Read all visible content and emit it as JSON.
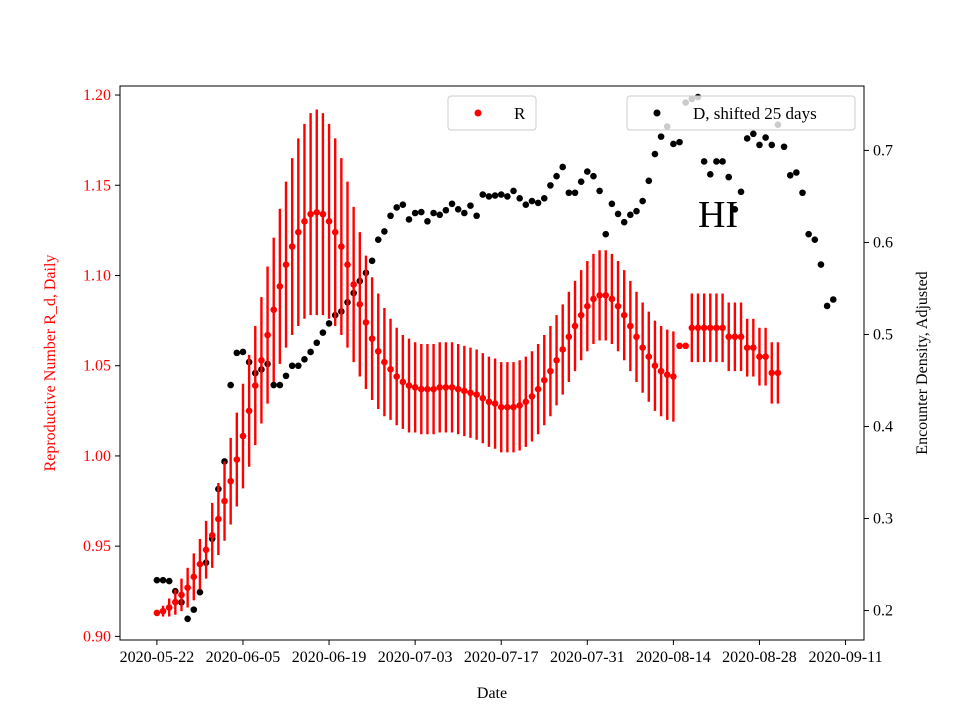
{
  "chart_data": {
    "type": "scatter",
    "annotation": "HI",
    "xlabel": "Date",
    "ylabel_left": "Reproductive Number R_d, Daily",
    "ylabel_right": "Encounter Density, Adjusted",
    "x_tick_labels": [
      "2020-05-22",
      "2020-06-05",
      "2020-06-19",
      "2020-07-03",
      "2020-07-17",
      "2020-07-31",
      "2020-08-14",
      "2020-08-28",
      "2020-09-11"
    ],
    "left_ticks": [
      "0.90",
      "0.95",
      "1.00",
      "1.05",
      "1.10",
      "1.15",
      "1.20"
    ],
    "right_ticks": [
      "0.2",
      "0.3",
      "0.4",
      "0.5",
      "0.6",
      "0.7"
    ],
    "ylim_left": [
      0.898,
      1.205
    ],
    "ylim_right": [
      0.168,
      0.77
    ],
    "xlim": [
      "2020-05-16",
      "2020-09-14"
    ],
    "legend_left": "R",
    "legend_right": "D, shifted 25 days",
    "colors": {
      "r_series": "#ff0000",
      "d_series": "#000000",
      "left_axis": "#ff0000"
    },
    "r_series": {
      "name": "R",
      "start_date": "2020-05-22",
      "values": [
        0.913,
        0.914,
        0.916,
        0.919,
        0.923,
        0.927,
        0.933,
        0.94,
        0.948,
        0.956,
        0.965,
        0.975,
        0.986,
        0.998,
        1.011,
        1.025,
        1.039,
        1.053,
        1.067,
        1.081,
        1.094,
        1.106,
        1.116,
        1.124,
        1.13,
        1.134,
        1.135,
        1.134,
        1.13,
        1.124,
        1.116,
        1.106,
        1.095,
        1.084,
        1.074,
        1.065,
        1.058,
        1.052,
        1.048,
        1.044,
        1.041,
        1.039,
        1.038,
        1.037,
        1.037,
        1.037,
        1.038,
        1.038,
        1.038,
        1.037,
        1.036,
        1.035,
        1.034,
        1.032,
        1.03,
        1.029,
        1.027,
        1.027,
        1.027,
        1.028,
        1.03,
        1.033,
        1.037,
        1.042,
        1.047,
        1.053,
        1.059,
        1.066,
        1.072,
        1.078,
        1.083,
        1.087,
        1.089,
        1.089,
        1.087,
        1.083,
        1.078,
        1.072,
        1.066,
        1.06,
        1.055,
        1.05,
        1.047,
        1.045,
        1.044,
        1.061,
        1.061,
        1.071,
        1.071,
        1.071,
        1.071,
        1.071,
        1.071,
        1.066,
        1.066,
        1.066,
        1.06,
        1.06,
        1.055,
        1.055,
        1.046,
        1.046
      ],
      "errors": [
        0.0,
        0.003,
        0.005,
        0.007,
        0.009,
        0.011,
        0.013,
        0.014,
        0.016,
        0.018,
        0.02,
        0.022,
        0.024,
        0.026,
        0.029,
        0.031,
        0.033,
        0.035,
        0.038,
        0.04,
        0.043,
        0.046,
        0.049,
        0.052,
        0.054,
        0.056,
        0.057,
        0.056,
        0.054,
        0.052,
        0.049,
        0.046,
        0.043,
        0.04,
        0.037,
        0.034,
        0.032,
        0.03,
        0.028,
        0.027,
        0.026,
        0.026,
        0.025,
        0.025,
        0.025,
        0.025,
        0.025,
        0.025,
        0.025,
        0.025,
        0.025,
        0.025,
        0.025,
        0.025,
        0.025,
        0.025,
        0.025,
        0.025,
        0.025,
        0.025,
        0.025,
        0.025,
        0.025,
        0.025,
        0.025,
        0.025,
        0.025,
        0.025,
        0.025,
        0.025,
        0.025,
        0.025,
        0.025,
        0.025,
        0.025,
        0.025,
        0.025,
        0.025,
        0.025,
        0.025,
        0.025,
        0.025,
        0.025,
        0.025,
        0.025,
        0.0,
        0.0,
        0.019,
        0.019,
        0.019,
        0.019,
        0.019,
        0.019,
        0.019,
        0.019,
        0.019,
        0.016,
        0.016,
        0.016,
        0.016,
        0.017,
        0.017
      ]
    },
    "d_series": {
      "name": "D, shifted 25 days",
      "points": [
        [
          "2020-05-22",
          0.233
        ],
        [
          "2020-05-23",
          0.233
        ],
        [
          "2020-05-24",
          0.232
        ],
        [
          "2020-05-25",
          0.221
        ],
        [
          "2020-05-26",
          0.209
        ],
        [
          "2020-05-27",
          0.191
        ],
        [
          "2020-05-28",
          0.201
        ],
        [
          "2020-05-29",
          0.22
        ],
        [
          "2020-05-30",
          0.252
        ],
        [
          "2020-05-31",
          0.278
        ],
        [
          "2020-06-01",
          0.332
        ],
        [
          "2020-06-02",
          0.362
        ],
        [
          "2020-06-03",
          0.445
        ],
        [
          "2020-06-04",
          0.48
        ],
        [
          "2020-06-05",
          0.481
        ],
        [
          "2020-06-06",
          0.47
        ],
        [
          "2020-06-07",
          0.458
        ],
        [
          "2020-06-08",
          0.462
        ],
        [
          "2020-06-09",
          0.468
        ],
        [
          "2020-06-10",
          0.445
        ],
        [
          "2020-06-11",
          0.445
        ],
        [
          "2020-06-12",
          0.455
        ],
        [
          "2020-06-13",
          0.466
        ],
        [
          "2020-06-14",
          0.466
        ],
        [
          "2020-06-15",
          0.473
        ],
        [
          "2020-06-16",
          0.481
        ],
        [
          "2020-06-17",
          0.491
        ],
        [
          "2020-06-18",
          0.502
        ],
        [
          "2020-06-19",
          0.512
        ],
        [
          "2020-06-20",
          0.521
        ],
        [
          "2020-06-21",
          0.525
        ],
        [
          "2020-06-22",
          0.535
        ],
        [
          "2020-06-23",
          0.545
        ],
        [
          "2020-06-24",
          0.558
        ],
        [
          "2020-06-25",
          0.567
        ],
        [
          "2020-06-26",
          0.58
        ],
        [
          "2020-06-27",
          0.603
        ],
        [
          "2020-06-28",
          0.612
        ],
        [
          "2020-06-29",
          0.629
        ],
        [
          "2020-06-30",
          0.638
        ],
        [
          "2020-07-01",
          0.641
        ],
        [
          "2020-07-02",
          0.625
        ],
        [
          "2020-07-03",
          0.632
        ],
        [
          "2020-07-04",
          0.633
        ],
        [
          "2020-07-05",
          0.623
        ],
        [
          "2020-07-06",
          0.632
        ],
        [
          "2020-07-07",
          0.63
        ],
        [
          "2020-07-08",
          0.635
        ],
        [
          "2020-07-09",
          0.642
        ],
        [
          "2020-07-10",
          0.636
        ],
        [
          "2020-07-11",
          0.632
        ],
        [
          "2020-07-12",
          0.64
        ],
        [
          "2020-07-13",
          0.629
        ],
        [
          "2020-07-14",
          0.652
        ],
        [
          "2020-07-15",
          0.65
        ],
        [
          "2020-07-16",
          0.651
        ],
        [
          "2020-07-17",
          0.652
        ],
        [
          "2020-07-18",
          0.65
        ],
        [
          "2020-07-19",
          0.656
        ],
        [
          "2020-07-20",
          0.648
        ],
        [
          "2020-07-21",
          0.641
        ],
        [
          "2020-07-22",
          0.645
        ],
        [
          "2020-07-23",
          0.643
        ],
        [
          "2020-07-24",
          0.648
        ],
        [
          "2020-07-25",
          0.662
        ],
        [
          "2020-07-26",
          0.672
        ],
        [
          "2020-07-27",
          0.682
        ],
        [
          "2020-07-28",
          0.654
        ],
        [
          "2020-07-29",
          0.654
        ],
        [
          "2020-07-30",
          0.666
        ],
        [
          "2020-07-31",
          0.677
        ],
        [
          "2020-08-01",
          0.672
        ],
        [
          "2020-08-02",
          0.656
        ],
        [
          "2020-08-03",
          0.609
        ],
        [
          "2020-08-04",
          0.642
        ],
        [
          "2020-08-05",
          0.631
        ],
        [
          "2020-08-06",
          0.622
        ],
        [
          "2020-08-07",
          0.63
        ],
        [
          "2020-08-08",
          0.634
        ],
        [
          "2020-08-09",
          0.645
        ],
        [
          "2020-08-10",
          0.667
        ],
        [
          "2020-08-11",
          0.696
        ],
        [
          "2020-08-12",
          0.715
        ],
        [
          "2020-08-13",
          0.726
        ],
        [
          "2020-08-14",
          0.707
        ],
        [
          "2020-08-15",
          0.709
        ],
        [
          "2020-08-16",
          0.752
        ],
        [
          "2020-08-17",
          0.756
        ],
        [
          "2020-08-18",
          0.758
        ],
        [
          "2020-08-19",
          0.688
        ],
        [
          "2020-08-20",
          0.674
        ],
        [
          "2020-08-21",
          0.688
        ],
        [
          "2020-08-22",
          0.688
        ],
        [
          "2020-08-23",
          0.671
        ],
        [
          "2020-08-24",
          0.636
        ],
        [
          "2020-08-25",
          0.655
        ],
        [
          "2020-08-26",
          0.713
        ],
        [
          "2020-08-27",
          0.718
        ],
        [
          "2020-08-28",
          0.706
        ],
        [
          "2020-08-29",
          0.714
        ],
        [
          "2020-08-30",
          0.706
        ],
        [
          "2020-08-31",
          0.728
        ],
        [
          "2020-09-01",
          0.704
        ],
        [
          "2020-09-02",
          0.673
        ],
        [
          "2020-09-03",
          0.676
        ],
        [
          "2020-09-04",
          0.654
        ],
        [
          "2020-09-05",
          0.609
        ],
        [
          "2020-09-06",
          0.603
        ],
        [
          "2020-09-07",
          0.576
        ],
        [
          "2020-09-08",
          0.531
        ],
        [
          "2020-09-09",
          0.538
        ]
      ]
    }
  }
}
